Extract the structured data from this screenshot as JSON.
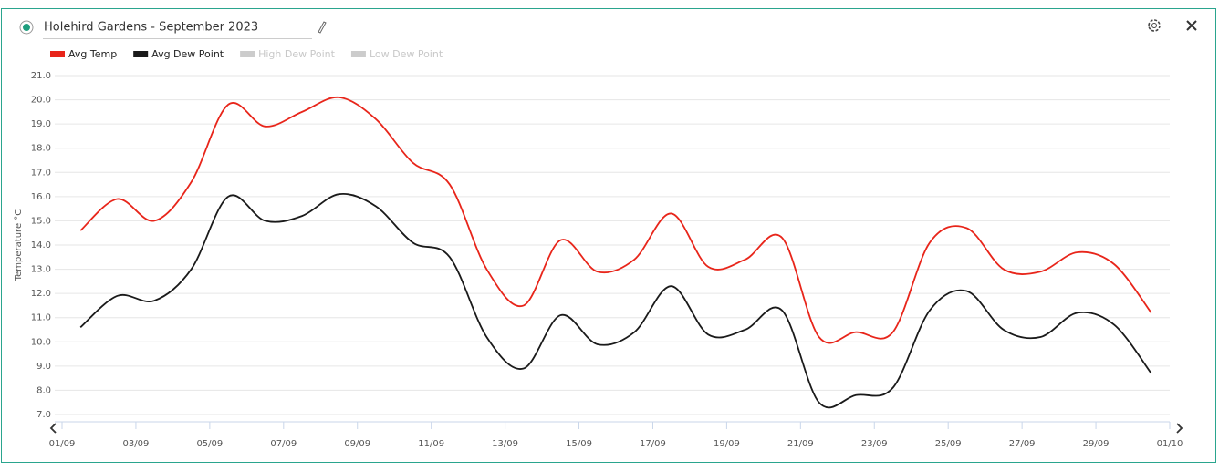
{
  "chart_data": {
    "type": "line",
    "title": "Holehird Gardens - September 2023",
    "y_label": "Temperature °C",
    "x": [
      "01/09",
      "02/09",
      "03/09",
      "04/09",
      "05/09",
      "06/09",
      "07/09",
      "08/09",
      "09/09",
      "10/09",
      "11/09",
      "12/09",
      "13/09",
      "14/09",
      "15/09",
      "16/09",
      "17/09",
      "18/09",
      "19/09",
      "20/09",
      "21/09",
      "22/09",
      "23/09",
      "24/09",
      "25/09",
      "26/09",
      "27/09",
      "28/09",
      "29/09",
      "30/09"
    ],
    "xtick_labels": [
      "01/09",
      "03/09",
      "05/09",
      "07/09",
      "09/09",
      "11/09",
      "13/09",
      "15/09",
      "17/09",
      "19/09",
      "21/09",
      "23/09",
      "25/09",
      "27/09",
      "29/09",
      "01/10"
    ],
    "series": [
      {
        "name": "Avg Temp",
        "color": "#e8251a",
        "values": [
          14.6,
          15.9,
          15.0,
          16.6,
          19.8,
          18.9,
          19.5,
          20.1,
          19.2,
          17.4,
          16.5,
          13.0,
          11.5,
          14.2,
          12.9,
          13.4,
          15.3,
          13.1,
          13.4,
          14.3,
          10.2,
          10.4,
          10.4,
          14.1,
          14.7,
          13.0,
          12.9,
          13.7,
          13.2,
          11.2
        ]
      },
      {
        "name": "Avg Dew Point",
        "color": "#1a1a1a",
        "values": [
          10.6,
          11.9,
          11.7,
          13.0,
          16.0,
          15.0,
          15.2,
          16.1,
          15.6,
          14.1,
          13.5,
          10.2,
          8.9,
          11.1,
          9.9,
          10.4,
          12.3,
          10.3,
          10.5,
          11.3,
          7.5,
          7.8,
          8.1,
          11.3,
          12.1,
          10.5,
          10.2,
          11.2,
          10.7,
          8.7
        ]
      }
    ],
    "hidden_series": [
      "High Dew Point",
      "Low Dew Point"
    ],
    "ylim": [
      7,
      21
    ],
    "yticks": [
      {
        "value": 7,
        "label": "7.0"
      },
      {
        "value": 8,
        "label": "8.0"
      },
      {
        "value": 9,
        "label": "9.0"
      },
      {
        "value": 10,
        "label": "10.0"
      },
      {
        "value": 11,
        "label": "11.0"
      },
      {
        "value": 12,
        "label": "12.0"
      },
      {
        "value": 13,
        "label": "13.0"
      },
      {
        "value": 14,
        "label": "14.0"
      },
      {
        "value": 15,
        "label": "15.0"
      },
      {
        "value": 16,
        "label": "16.0"
      },
      {
        "value": 17,
        "label": "17.0"
      },
      {
        "value": 18,
        "label": "18.0"
      },
      {
        "value": 19,
        "label": "19.0"
      },
      {
        "value": 20,
        "label": "20.0"
      },
      {
        "value": 21,
        "label": "21.0"
      }
    ],
    "grid": true
  }
}
